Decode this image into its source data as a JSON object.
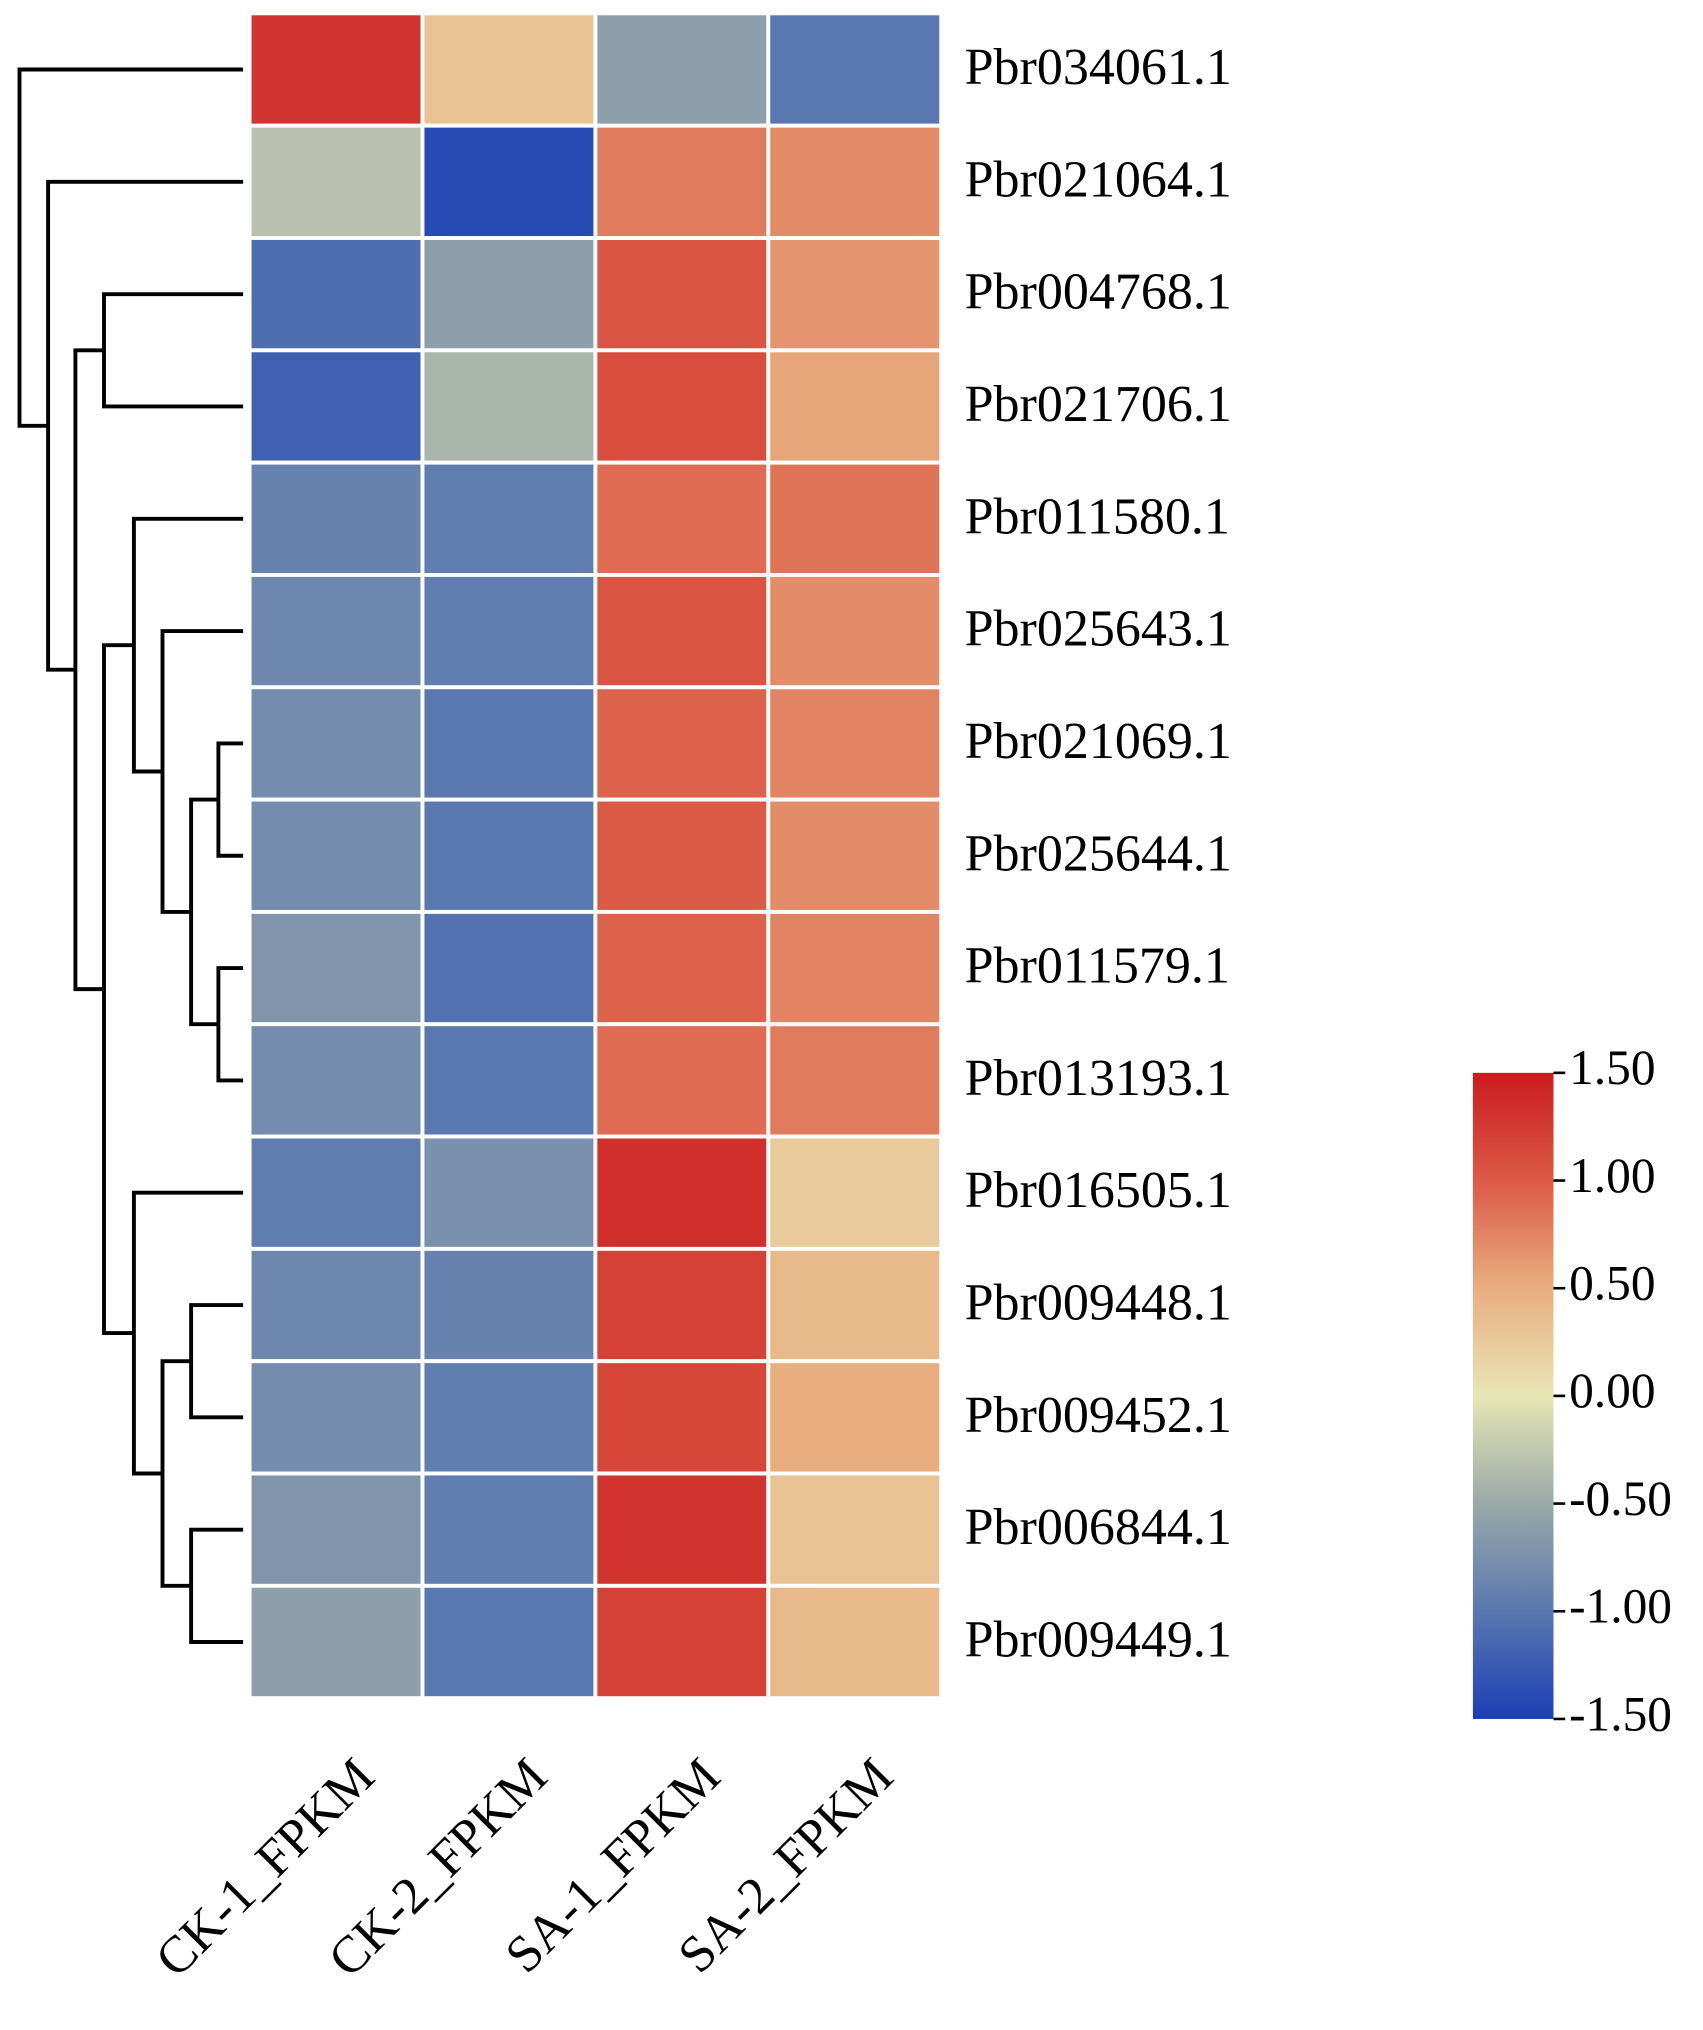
{
  "chart_data": {
    "type": "heatmap",
    "x": [
      "CK-1_FPKM",
      "CK-2_FPKM",
      "SA-1_FPKM",
      "SA-2_FPKM"
    ],
    "y": [
      "Pbr034061.1",
      "Pbr021064.1",
      "Pbr004768.1",
      "Pbr021706.1",
      "Pbr011580.1",
      "Pbr025643.1",
      "Pbr021069.1",
      "Pbr025644.1",
      "Pbr011579.1",
      "Pbr013193.1",
      "Pbr016505.1",
      "Pbr009448.1",
      "Pbr009452.1",
      "Pbr006844.1",
      "Pbr009449.1"
    ],
    "values": [
      [
        1.3,
        0.3,
        -0.6,
        -1.0
      ],
      [
        -0.3,
        -1.4,
        0.8,
        0.7
      ],
      [
        -1.1,
        -0.6,
        1.05,
        0.65
      ],
      [
        -1.2,
        -0.4,
        1.1,
        0.55
      ],
      [
        -0.9,
        -0.95,
        0.9,
        0.85
      ],
      [
        -0.85,
        -0.95,
        1.05,
        0.7
      ],
      [
        -0.8,
        -1.0,
        0.95,
        0.75
      ],
      [
        -0.8,
        -1.0,
        1.0,
        0.7
      ],
      [
        -0.7,
        -1.05,
        0.95,
        0.75
      ],
      [
        -0.8,
        -1.0,
        0.9,
        0.8
      ],
      [
        -0.95,
        -0.75,
        1.35,
        0.25
      ],
      [
        -0.85,
        -0.9,
        1.2,
        0.4
      ],
      [
        -0.8,
        -0.95,
        1.15,
        0.5
      ],
      [
        -0.7,
        -0.95,
        1.3,
        0.3
      ],
      [
        -0.6,
        -1.0,
        1.2,
        0.4
      ]
    ],
    "zlim": [
      -1.5,
      1.5
    ],
    "zticks": [
      {
        "value": 1.5,
        "label": "1.50"
      },
      {
        "value": 1.0,
        "label": "1.00"
      },
      {
        "value": 0.5,
        "label": "0.50"
      },
      {
        "value": 0,
        "label": "0.00"
      },
      {
        "value": -0.5,
        "label": "-0.50"
      },
      {
        "value": -1.0,
        "label": "-1.00"
      },
      {
        "value": -1.5,
        "label": "-1.50"
      }
    ],
    "colorscale": [
      "#1a3fb5",
      "#5a78b0",
      "#9aa9a9",
      "#e8e6b5",
      "#e8ae80",
      "#db5a46",
      "#cb1b1f"
    ]
  }
}
